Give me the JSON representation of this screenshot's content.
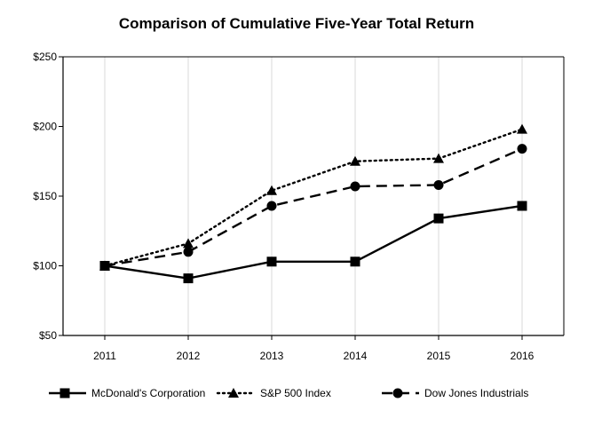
{
  "chart_data": {
    "type": "line",
    "title": "Comparison of Cumulative Five-Year Total Return",
    "xlabel": "",
    "ylabel": "",
    "categories": [
      "2011",
      "2012",
      "2013",
      "2014",
      "2015",
      "2016"
    ],
    "y_ticks": [
      "$50",
      "$100",
      "$150",
      "$200",
      "$250"
    ],
    "ylim": [
      50,
      250
    ],
    "grid": "vertical",
    "legend_position": "bottom",
    "series": [
      {
        "name": "McDonald's Corporation",
        "values": [
          100,
          91,
          103,
          103,
          134,
          143
        ],
        "line": "solid",
        "marker": "square",
        "color": "#000000"
      },
      {
        "name": "S&P 500 Index",
        "values": [
          100,
          116,
          154,
          175,
          177,
          198
        ],
        "line": "dotted",
        "marker": "triangle",
        "color": "#000000"
      },
      {
        "name": "Dow Jones Industrials",
        "values": [
          100,
          110,
          143,
          157,
          158,
          184
        ],
        "line": "dashed",
        "marker": "circle",
        "color": "#000000"
      }
    ]
  }
}
